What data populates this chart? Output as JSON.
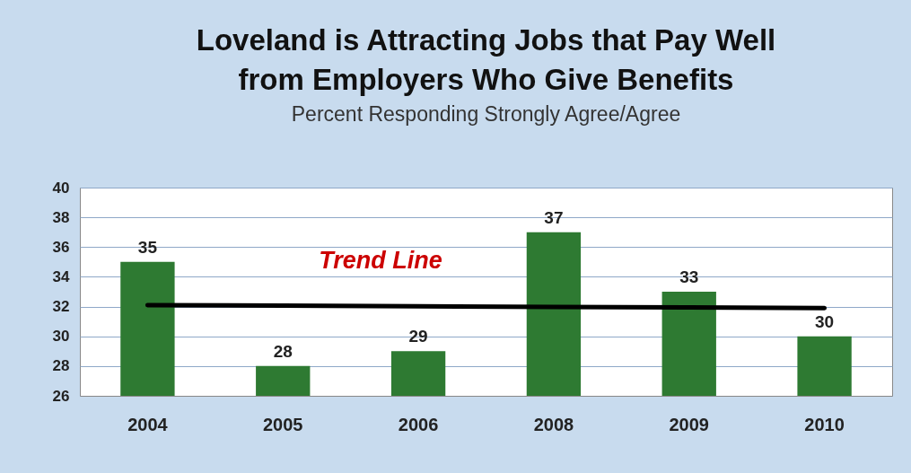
{
  "chart_data": {
    "type": "bar",
    "title": "Loveland is Attracting Jobs that Pay Well\nfrom Employers Who Give Benefits",
    "subtitle": "Percent Responding Strongly Agree/Agree",
    "categories": [
      "2004",
      "2005",
      "2006",
      "2008",
      "2009",
      "2010"
    ],
    "series": [
      {
        "color": "#2e7a32",
        "values": [
          35,
          28,
          29,
          37,
          33,
          30
        ],
        "value_labels": [
          "35",
          "28",
          "29",
          "37",
          "33",
          "30"
        ]
      },
      {
        "type": "line",
        "color": "#000000",
        "values": [
          32.1,
          32.06,
          32.02,
          31.98,
          31.94,
          31.9
        ]
      }
    ],
    "ylim": [
      26,
      40
    ],
    "yticks": [
      26,
      28,
      30,
      32,
      34,
      36,
      38,
      40
    ],
    "grid": "y",
    "annotations": [
      "Trend Line"
    ]
  }
}
